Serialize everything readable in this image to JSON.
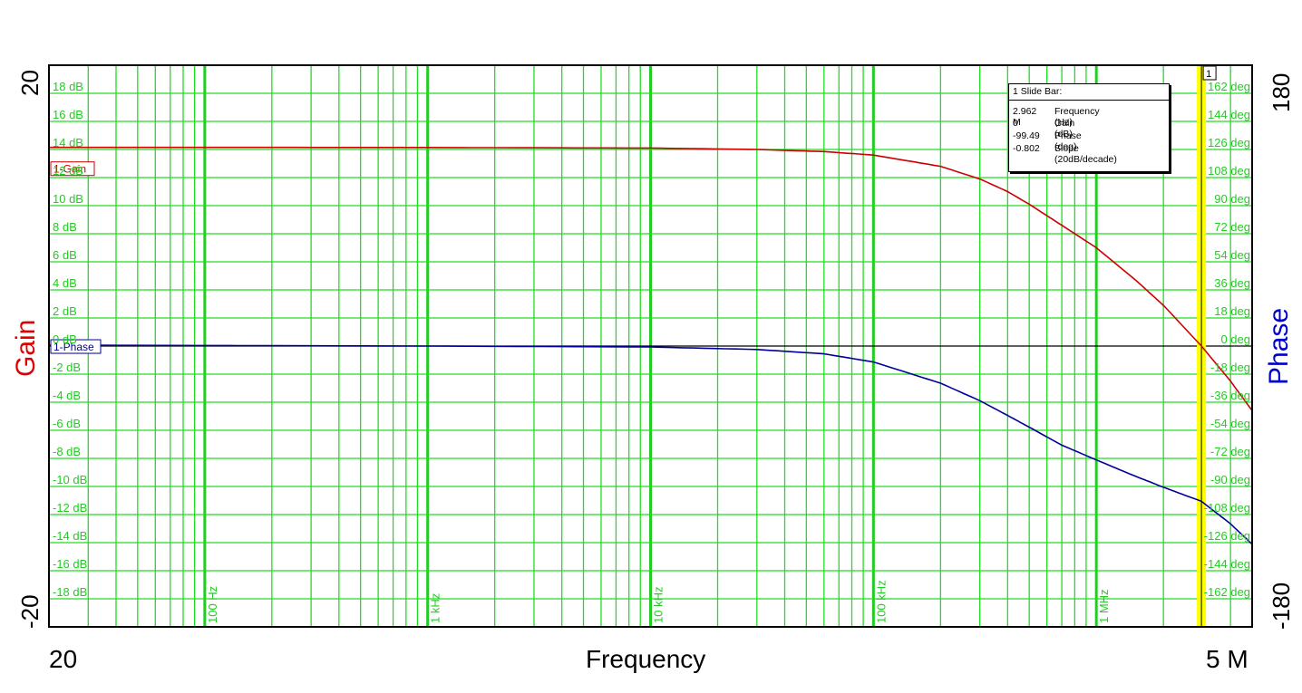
{
  "chart_data": {
    "type": "line",
    "xscale": "log",
    "x_range": [
      20,
      5000000
    ],
    "x_range_labels": {
      "min": "20",
      "max": "5 M"
    },
    "x_axis_label": "Frequency",
    "x_decade_labels": [
      {
        "x": 100,
        "label": "100 Hz"
      },
      {
        "x": 1000,
        "label": "1 kHz"
      },
      {
        "x": 10000,
        "label": "10 kHz"
      },
      {
        "x": 100000,
        "label": "100 kHz"
      },
      {
        "x": 1000000,
        "label": "1 MHz"
      }
    ],
    "left_axis": {
      "label": "Gain",
      "range": [
        -20,
        20
      ],
      "range_labels": {
        "min": "-20",
        "max": "20"
      },
      "ticks": [
        {
          "v": 18,
          "label": "18 dB"
        },
        {
          "v": 16,
          "label": "16 dB"
        },
        {
          "v": 14,
          "label": "14 dB"
        },
        {
          "v": 12,
          "label": "12 dB"
        },
        {
          "v": 10,
          "label": "10 dB"
        },
        {
          "v": 8,
          "label": "8 dB"
        },
        {
          "v": 6,
          "label": "6 dB"
        },
        {
          "v": 4,
          "label": "4 dB"
        },
        {
          "v": 2,
          "label": "2 dB"
        },
        {
          "v": 0,
          "label": "0 dB"
        },
        {
          "v": -2,
          "label": "-2 dB"
        },
        {
          "v": -4,
          "label": "-4 dB"
        },
        {
          "v": -6,
          "label": "-6 dB"
        },
        {
          "v": -8,
          "label": "-8 dB"
        },
        {
          "v": -10,
          "label": "-10 dB"
        },
        {
          "v": -12,
          "label": "-12 dB"
        },
        {
          "v": -14,
          "label": "-14 dB"
        },
        {
          "v": -16,
          "label": "-16 dB"
        },
        {
          "v": -18,
          "label": "-18 dB"
        }
      ]
    },
    "right_axis": {
      "label": "Phase",
      "range": [
        -180,
        180
      ],
      "range_labels": {
        "min": "-180",
        "max": "180"
      },
      "ticks": [
        {
          "v": 162,
          "label": "162 deg"
        },
        {
          "v": 144,
          "label": "144 deg"
        },
        {
          "v": 126,
          "label": "126 deg"
        },
        {
          "v": 108,
          "label": "108 deg"
        },
        {
          "v": 90,
          "label": "90 deg"
        },
        {
          "v": 72,
          "label": "72 deg"
        },
        {
          "v": 54,
          "label": "54 deg"
        },
        {
          "v": 36,
          "label": "36 deg"
        },
        {
          "v": 18,
          "label": "18 deg"
        },
        {
          "v": 0,
          "label": "0 deg"
        },
        {
          "v": -18,
          "label": "-18 deg"
        },
        {
          "v": -36,
          "label": "-36 deg"
        },
        {
          "v": -54,
          "label": "-54 deg"
        },
        {
          "v": -72,
          "label": "-72 deg"
        },
        {
          "v": -90,
          "label": "-90 deg"
        },
        {
          "v": -108,
          "label": "-108 deg"
        },
        {
          "v": -126,
          "label": "-126 deg"
        },
        {
          "v": -144,
          "label": "-144 deg"
        },
        {
          "v": -162,
          "label": "-162 deg"
        }
      ]
    },
    "series": [
      {
        "name": "1-Gain",
        "axis": "left",
        "color": "#cc0000",
        "x": [
          20,
          100,
          1000,
          10000,
          30000,
          60000,
          100000,
          200000,
          300000,
          400000,
          500000,
          700000,
          1000000,
          1500000,
          2000000,
          2962000,
          4000000,
          5000000
        ],
        "y": [
          14.15,
          14.15,
          14.14,
          14.1,
          14.0,
          13.85,
          13.6,
          12.8,
          11.9,
          11.0,
          10.1,
          8.6,
          7.0,
          4.7,
          2.9,
          0.0,
          -2.5,
          -4.6
        ]
      },
      {
        "name": "1-Phase",
        "axis": "right",
        "color": "#000099",
        "x": [
          20,
          1000,
          10000,
          30000,
          60000,
          100000,
          200000,
          300000,
          400000,
          500000,
          700000,
          1000000,
          1500000,
          2000000,
          2962000,
          4000000,
          5000000
        ],
        "y": [
          0.6,
          0.0,
          -0.6,
          -2.2,
          -5.0,
          -10.2,
          -23.8,
          -35.0,
          -44.5,
          -52.0,
          -63.5,
          -73.0,
          -83.5,
          -90.5,
          -99.5,
          -114.0,
          -127.0
        ]
      }
    ],
    "series_label_y": {
      "1-Gain": 12.6,
      "1-Phase": -0.6
    },
    "slide_bar": {
      "index": "1",
      "frequency": 2962000,
      "title": "1  Slide Bar:",
      "rows": [
        {
          "value": "2.962 M",
          "label": "Frequency (Hz)"
        },
        {
          "value": "0",
          "label": "Gain (dB)"
        },
        {
          "value": "-99.49",
          "label": "Phase (deg)"
        },
        {
          "value": "-0.802",
          "label": "Slope (20dB/decade)"
        }
      ]
    },
    "grid": true,
    "colors": {
      "grid": "#22dd22",
      "grid_major": "#22cc22",
      "background": "#ffffff",
      "cursor": "#ffff00"
    }
  }
}
